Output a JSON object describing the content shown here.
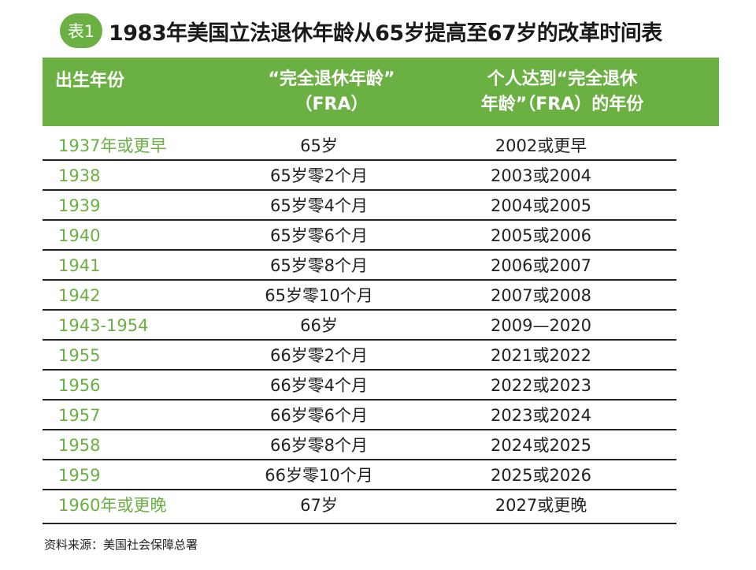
{
  "title": {
    "badge": "表1",
    "text": "1983年美国立法退休年龄从65岁提高至67岁的改革时间表"
  },
  "header": {
    "col1": "出生年份",
    "col2_line1": "“完全退休年龄”",
    "col2_line2": "（FRA）",
    "col3_line1": "个人达到“完全退休",
    "col3_line2": "年龄”（FRA）的年份"
  },
  "rows": [
    {
      "birth": "1937年或更早",
      "fra": "65岁",
      "year": "2002或更早"
    },
    {
      "birth": "1938",
      "fra": "65岁零2个月",
      "year": "2003或2004"
    },
    {
      "birth": "1939",
      "fra": "65岁零4个月",
      "year": "2004或2005"
    },
    {
      "birth": "1940",
      "fra": "65岁零6个月",
      "year": "2005或2006"
    },
    {
      "birth": "1941",
      "fra": "65岁零8个月",
      "year": "2006或2007"
    },
    {
      "birth": "1942",
      "fra": "65岁零10个月",
      "year": "2007或2008"
    },
    {
      "birth": "1943-1954",
      "fra": "66岁",
      "year": "2009—2020"
    },
    {
      "birth": "1955",
      "fra": "66岁零2个月",
      "year": "2021或2022"
    },
    {
      "birth": "1956",
      "fra": "66岁零4个月",
      "year": "2022或2023"
    },
    {
      "birth": "1957",
      "fra": "66岁零6个月",
      "year": "2023或2024"
    },
    {
      "birth": "1958",
      "fra": "66岁零8个月",
      "year": "2024或2025"
    },
    {
      "birth": "1959",
      "fra": "66岁零10个月",
      "year": "2025或2026"
    },
    {
      "birth": "1960年或更晚",
      "fra": "67岁",
      "year": "2027或更晚"
    }
  ],
  "source": "资料来源：美国社会保障总署",
  "colors": {
    "accent": "#6ab042",
    "rule": "#222222"
  }
}
